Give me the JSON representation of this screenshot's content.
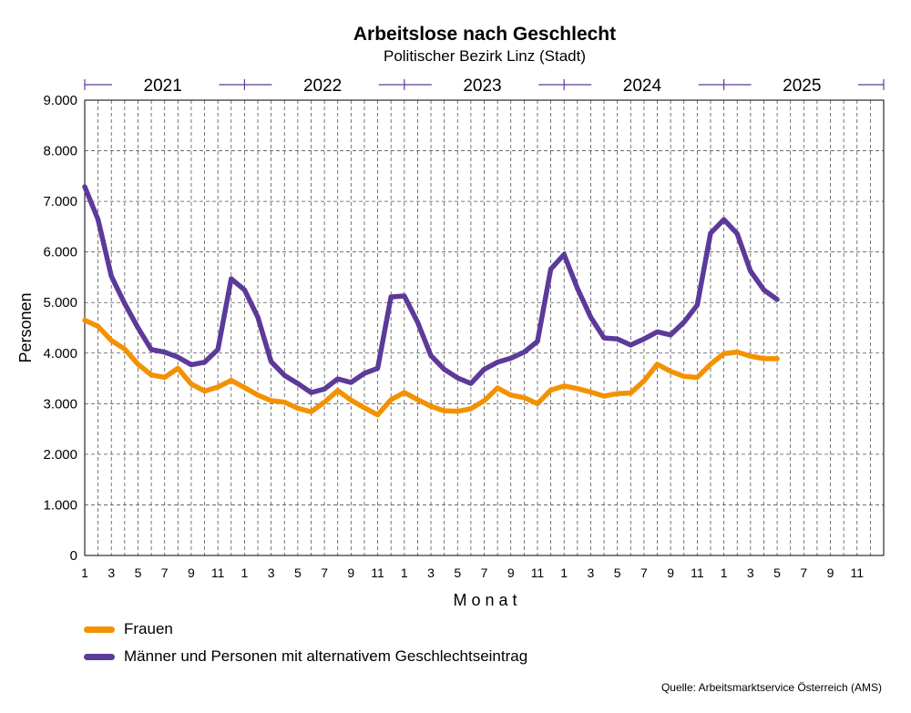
{
  "colors": {
    "frauen": "#f39200",
    "maenner": "#5c3a99",
    "year_axis": "#5c3a99"
  },
  "chart_data": {
    "type": "line",
    "title": "Arbeitslose nach Geschlecht",
    "subtitle": "Politischer Bezirk Linz (Stadt)",
    "xlabel": "Monat",
    "ylabel": "Personen",
    "ylim": [
      0,
      9000
    ],
    "yticks": [
      "0",
      "1.000",
      "2.000",
      "3.000",
      "4.000",
      "5.000",
      "6.000",
      "7.000",
      "8.000",
      "9.000"
    ],
    "years": [
      "2021",
      "2022",
      "2023",
      "2024",
      "2025"
    ],
    "month_tick_labels": [
      "1",
      "",
      "3",
      "",
      "5",
      "",
      "7",
      "",
      "9",
      "",
      "11",
      ""
    ],
    "grid": true,
    "legend_position": "bottom-left",
    "source": "Quelle: Arbeitsmarktservice Österreich (AMS)",
    "series": [
      {
        "name": "Frauen",
        "color": "#f39200",
        "values": [
          4650,
          4530,
          4250,
          4080,
          3780,
          3570,
          3520,
          3700,
          3390,
          3250,
          3330,
          3460,
          3320,
          3170,
          3060,
          3030,
          2910,
          2840,
          3030,
          3260,
          3070,
          2920,
          2780,
          3080,
          3220,
          3080,
          2950,
          2860,
          2850,
          2900,
          3060,
          3310,
          3170,
          3120,
          3000,
          3270,
          3350,
          3300,
          3230,
          3150,
          3200,
          3210,
          3450,
          3780,
          3640,
          3540,
          3520,
          3780,
          3990,
          4020,
          3940,
          3890,
          3890
        ]
      },
      {
        "name": "Männer und Personen mit alternativem Geschlechtseintrag",
        "color": "#5c3a99",
        "values": [
          7290,
          6640,
          5520,
          4980,
          4500,
          4070,
          4020,
          3920,
          3770,
          3820,
          4070,
          5470,
          5250,
          4710,
          3830,
          3560,
          3400,
          3220,
          3290,
          3490,
          3420,
          3600,
          3700,
          5110,
          5130,
          4610,
          3950,
          3680,
          3510,
          3400,
          3680,
          3820,
          3900,
          4020,
          4230,
          5660,
          5950,
          5280,
          4710,
          4300,
          4280,
          4160,
          4280,
          4420,
          4360,
          4610,
          4950,
          6370,
          6640,
          6360,
          5620,
          5250,
          5060
        ]
      }
    ]
  }
}
